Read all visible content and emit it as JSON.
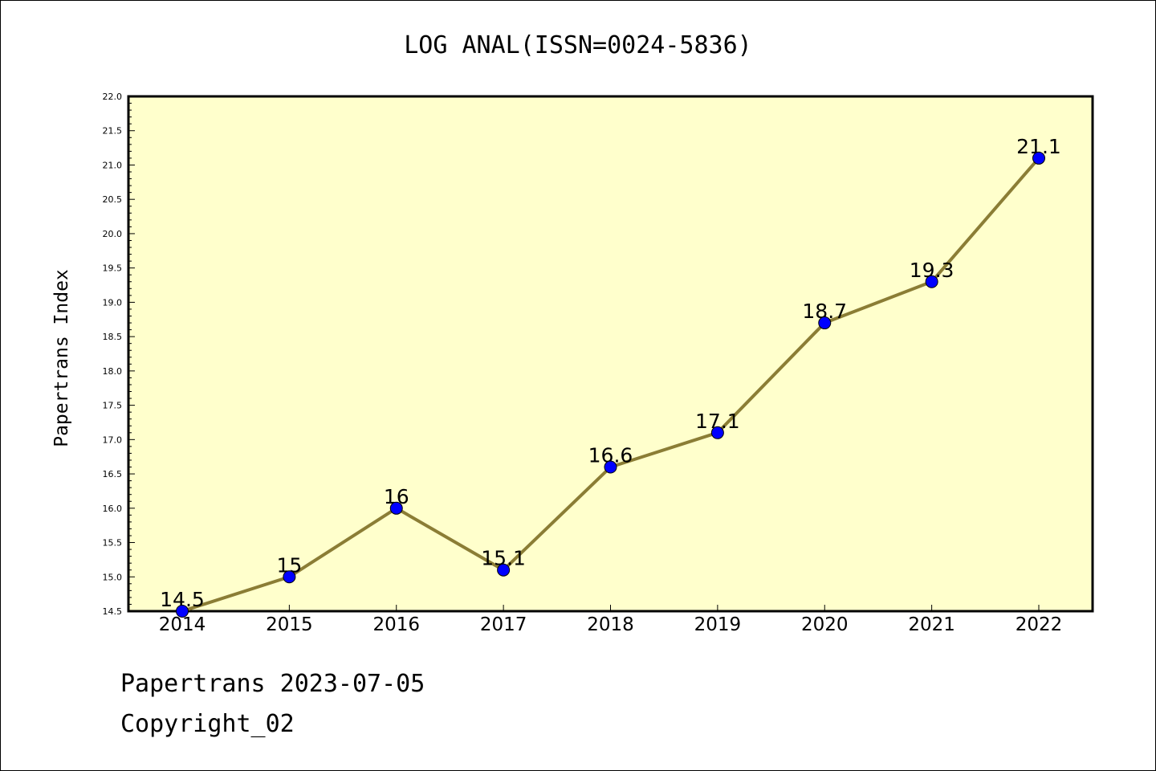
{
  "footer": {
    "line1": "Papertrans 2023-07-05",
    "line2": "Copyright_02"
  },
  "colors": {
    "plot_background": "#ffffcc",
    "line": "#8b7d35",
    "marker": "#0000ff"
  },
  "chart_data": {
    "type": "line",
    "title": "LOG ANAL(ISSN=0024-5836)",
    "xlabel": "",
    "ylabel": "Papertrans Index",
    "categories": [
      "2014",
      "2015",
      "2016",
      "2017",
      "2018",
      "2019",
      "2020",
      "2021",
      "2022"
    ],
    "series": [
      {
        "values": [
          14.5,
          15.0,
          16.0,
          15.1,
          16.6,
          17.1,
          18.7,
          19.3,
          21.1
        ],
        "labels": [
          "14.5",
          "15",
          "16",
          "15.1",
          "16.6",
          "17.1",
          "18.7",
          "19.3",
          "21.1"
        ]
      }
    ],
    "ylim": [
      14.5,
      22.0
    ],
    "yticks": [
      "14.5",
      "15.0",
      "15.5",
      "16.0",
      "16.5",
      "17.0",
      "17.5",
      "18.0",
      "18.5",
      "19.0",
      "19.5",
      "20.0",
      "20.5",
      "21.0",
      "21.5",
      "22.0"
    ],
    "grid": false,
    "legend": "none"
  }
}
